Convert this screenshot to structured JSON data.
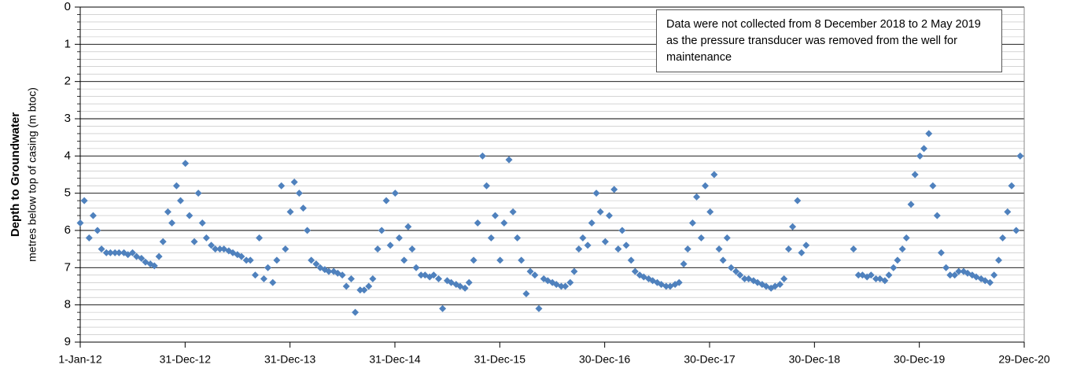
{
  "chart_data": {
    "type": "scatter",
    "y_label": "Depth to Groundwater",
    "y_sublabel": "metres below top of casing (m btoc)",
    "annotation": "Data were not collected  from 8 December 2018 to 2 May 2019 as the pressure transducer was removed from the well for maintenance",
    "series": [
      {
        "name": "Depth to groundwater",
        "color": "#4f81bd",
        "x": [
          "2012-01-01",
          "2012-01-15",
          "2012-02-01",
          "2012-02-15",
          "2012-03-01",
          "2012-03-15",
          "2012-04-01",
          "2012-04-15",
          "2012-05-01",
          "2012-05-15",
          "2012-06-01",
          "2012-06-15",
          "2012-07-01",
          "2012-07-15",
          "2012-08-01",
          "2012-08-15",
          "2012-09-01",
          "2012-09-15",
          "2012-10-01",
          "2012-10-15",
          "2012-11-01",
          "2012-11-15",
          "2012-12-01",
          "2012-12-15",
          "2013-01-01",
          "2013-01-15",
          "2013-02-01",
          "2013-02-15",
          "2013-03-01",
          "2013-03-15",
          "2013-04-01",
          "2013-04-15",
          "2013-05-01",
          "2013-05-15",
          "2013-06-01",
          "2013-06-15",
          "2013-07-01",
          "2013-07-15",
          "2013-08-01",
          "2013-08-15",
          "2013-09-01",
          "2013-09-15",
          "2013-10-01",
          "2013-10-15",
          "2013-11-01",
          "2013-11-15",
          "2013-12-01",
          "2013-12-15",
          "2014-01-01",
          "2014-01-15",
          "2014-02-01",
          "2014-02-15",
          "2014-03-01",
          "2014-03-15",
          "2014-04-01",
          "2014-04-15",
          "2014-05-01",
          "2014-05-15",
          "2014-06-01",
          "2014-06-15",
          "2014-07-01",
          "2014-07-15",
          "2014-08-01",
          "2014-08-15",
          "2014-09-01",
          "2014-09-15",
          "2014-10-01",
          "2014-10-15",
          "2014-11-01",
          "2014-11-15",
          "2014-12-01",
          "2014-12-15",
          "2015-01-01",
          "2015-01-15",
          "2015-02-01",
          "2015-02-15",
          "2015-03-01",
          "2015-03-15",
          "2015-04-01",
          "2015-04-15",
          "2015-05-01",
          "2015-05-15",
          "2015-06-01",
          "2015-06-15",
          "2015-07-01",
          "2015-07-15",
          "2015-08-01",
          "2015-08-15",
          "2015-09-01",
          "2015-09-15",
          "2015-10-01",
          "2015-10-15",
          "2015-11-01",
          "2015-11-15",
          "2015-12-01",
          "2015-12-15",
          "2016-01-01",
          "2016-01-15",
          "2016-02-01",
          "2016-02-15",
          "2016-03-01",
          "2016-03-15",
          "2016-04-01",
          "2016-04-15",
          "2016-05-01",
          "2016-05-15",
          "2016-06-01",
          "2016-06-15",
          "2016-07-01",
          "2016-07-15",
          "2016-08-01",
          "2016-08-15",
          "2016-09-01",
          "2016-09-15",
          "2016-10-01",
          "2016-10-15",
          "2016-11-01",
          "2016-11-15",
          "2016-12-01",
          "2016-12-15",
          "2017-01-01",
          "2017-01-15",
          "2017-02-01",
          "2017-02-15",
          "2017-03-01",
          "2017-03-15",
          "2017-04-01",
          "2017-04-15",
          "2017-05-01",
          "2017-05-15",
          "2017-06-01",
          "2017-06-15",
          "2017-07-01",
          "2017-07-15",
          "2017-08-01",
          "2017-08-15",
          "2017-09-01",
          "2017-09-15",
          "2017-10-01",
          "2017-10-15",
          "2017-11-01",
          "2017-11-15",
          "2017-12-01",
          "2017-12-15",
          "2018-01-01",
          "2018-01-15",
          "2018-02-01",
          "2018-02-15",
          "2018-03-01",
          "2018-03-15",
          "2018-04-01",
          "2018-04-15",
          "2018-05-01",
          "2018-05-15",
          "2018-06-01",
          "2018-06-15",
          "2018-07-01",
          "2018-07-15",
          "2018-08-01",
          "2018-08-15",
          "2018-09-01",
          "2018-09-15",
          "2018-10-01",
          "2018-10-15",
          "2018-11-01",
          "2018-11-15",
          "2018-12-01",
          "2019-05-15",
          "2019-06-01",
          "2019-06-15",
          "2019-07-01",
          "2019-07-15",
          "2019-08-01",
          "2019-08-15",
          "2019-09-01",
          "2019-09-15",
          "2019-10-01",
          "2019-10-15",
          "2019-11-01",
          "2019-11-15",
          "2019-12-01",
          "2019-12-15",
          "2020-01-01",
          "2020-01-15",
          "2020-02-01",
          "2020-02-15",
          "2020-03-01",
          "2020-03-15",
          "2020-04-01",
          "2020-04-15",
          "2020-05-01",
          "2020-05-15",
          "2020-06-01",
          "2020-06-15",
          "2020-07-01",
          "2020-07-15",
          "2020-08-01",
          "2020-08-15",
          "2020-09-01",
          "2020-09-15",
          "2020-10-01",
          "2020-10-15",
          "2020-11-01",
          "2020-11-15",
          "2020-12-01",
          "2020-12-15"
        ],
        "values": [
          5.8,
          5.2,
          6.2,
          5.6,
          6.0,
          6.5,
          6.6,
          6.6,
          6.6,
          6.6,
          6.6,
          6.65,
          6.6,
          6.7,
          6.75,
          6.85,
          6.9,
          6.95,
          6.7,
          6.3,
          5.5,
          5.8,
          4.8,
          5.2,
          4.2,
          5.6,
          6.3,
          5.0,
          5.8,
          6.2,
          6.4,
          6.5,
          6.5,
          6.5,
          6.55,
          6.6,
          6.65,
          6.7,
          6.8,
          6.8,
          7.2,
          6.2,
          7.3,
          7.0,
          7.4,
          6.8,
          4.8,
          6.5,
          5.5,
          4.7,
          5.0,
          5.4,
          6.0,
          6.8,
          6.9,
          7.0,
          7.05,
          7.1,
          7.1,
          7.15,
          7.2,
          7.5,
          7.3,
          8.2,
          7.6,
          7.6,
          7.5,
          7.3,
          6.5,
          6.0,
          5.2,
          6.4,
          5.0,
          6.2,
          6.8,
          5.9,
          6.5,
          7.0,
          7.2,
          7.2,
          7.25,
          7.2,
          7.3,
          8.1,
          7.35,
          7.4,
          7.45,
          7.5,
          7.55,
          7.4,
          6.8,
          5.8,
          4.0,
          4.8,
          6.2,
          5.6,
          6.8,
          5.8,
          4.1,
          5.5,
          6.2,
          6.8,
          7.7,
          7.1,
          7.2,
          8.1,
          7.3,
          7.35,
          7.4,
          7.45,
          7.5,
          7.5,
          7.4,
          7.1,
          6.5,
          6.2,
          6.4,
          5.8,
          5.0,
          5.5,
          6.3,
          5.6,
          4.9,
          6.5,
          6.0,
          6.4,
          6.8,
          7.1,
          7.2,
          7.25,
          7.3,
          7.35,
          7.4,
          7.45,
          7.5,
          7.5,
          7.45,
          7.4,
          6.9,
          6.5,
          5.8,
          5.1,
          6.2,
          4.8,
          5.5,
          4.5,
          6.5,
          6.8,
          6.2,
          7.0,
          7.1,
          7.2,
          7.3,
          7.3,
          7.35,
          7.4,
          7.45,
          7.5,
          7.55,
          7.5,
          7.45,
          7.3,
          6.5,
          5.9,
          5.2,
          6.6,
          6.4,
          6.5,
          7.2,
          7.2,
          7.25,
          7.2,
          7.3,
          7.3,
          7.35,
          7.2,
          7.0,
          6.8,
          6.5,
          6.2,
          5.3,
          4.5,
          4.0,
          3.8,
          3.4,
          4.8,
          5.6,
          6.6,
          7.0,
          7.2,
          7.2,
          7.1,
          7.1,
          7.15,
          7.2,
          7.25,
          7.3,
          7.35,
          7.4,
          7.2,
          6.8,
          6.2,
          5.5,
          4.8,
          6.0,
          4.0
        ]
      }
    ],
    "xlim": [
      "2012-01-01",
      "2020-12-29"
    ],
    "xticks": [
      {
        "value": "2012-01-01",
        "label": "1-Jan-12"
      },
      {
        "value": "2012-12-31",
        "label": "31-Dec-12"
      },
      {
        "value": "2013-12-31",
        "label": "31-Dec-13"
      },
      {
        "value": "2014-12-31",
        "label": "31-Dec-14"
      },
      {
        "value": "2015-12-31",
        "label": "31-Dec-15"
      },
      {
        "value": "2016-12-30",
        "label": "30-Dec-16"
      },
      {
        "value": "2017-12-30",
        "label": "30-Dec-17"
      },
      {
        "value": "2018-12-30",
        "label": "30-Dec-18"
      },
      {
        "value": "2019-12-30",
        "label": "30-Dec-19"
      },
      {
        "value": "2020-12-29",
        "label": "29-Dec-20"
      }
    ],
    "ylim": [
      0,
      9
    ],
    "y_inverted": true,
    "yticks": [
      0,
      1,
      2,
      3,
      4,
      5,
      6,
      7,
      8,
      9
    ],
    "minor_yticks": [
      0.2,
      0.4,
      0.6,
      0.8,
      1.2,
      1.4,
      1.6,
      1.8,
      2.2,
      2.4,
      2.6,
      2.8,
      3.2,
      3.4,
      3.6,
      3.8,
      4.2,
      4.4,
      4.6,
      4.8,
      5.2,
      5.4,
      5.6,
      5.8,
      6.2,
      6.4,
      6.6,
      6.8,
      7.2,
      7.4,
      7.6,
      7.8,
      8.2,
      8.4,
      8.6,
      8.8
    ],
    "grid": true
  }
}
